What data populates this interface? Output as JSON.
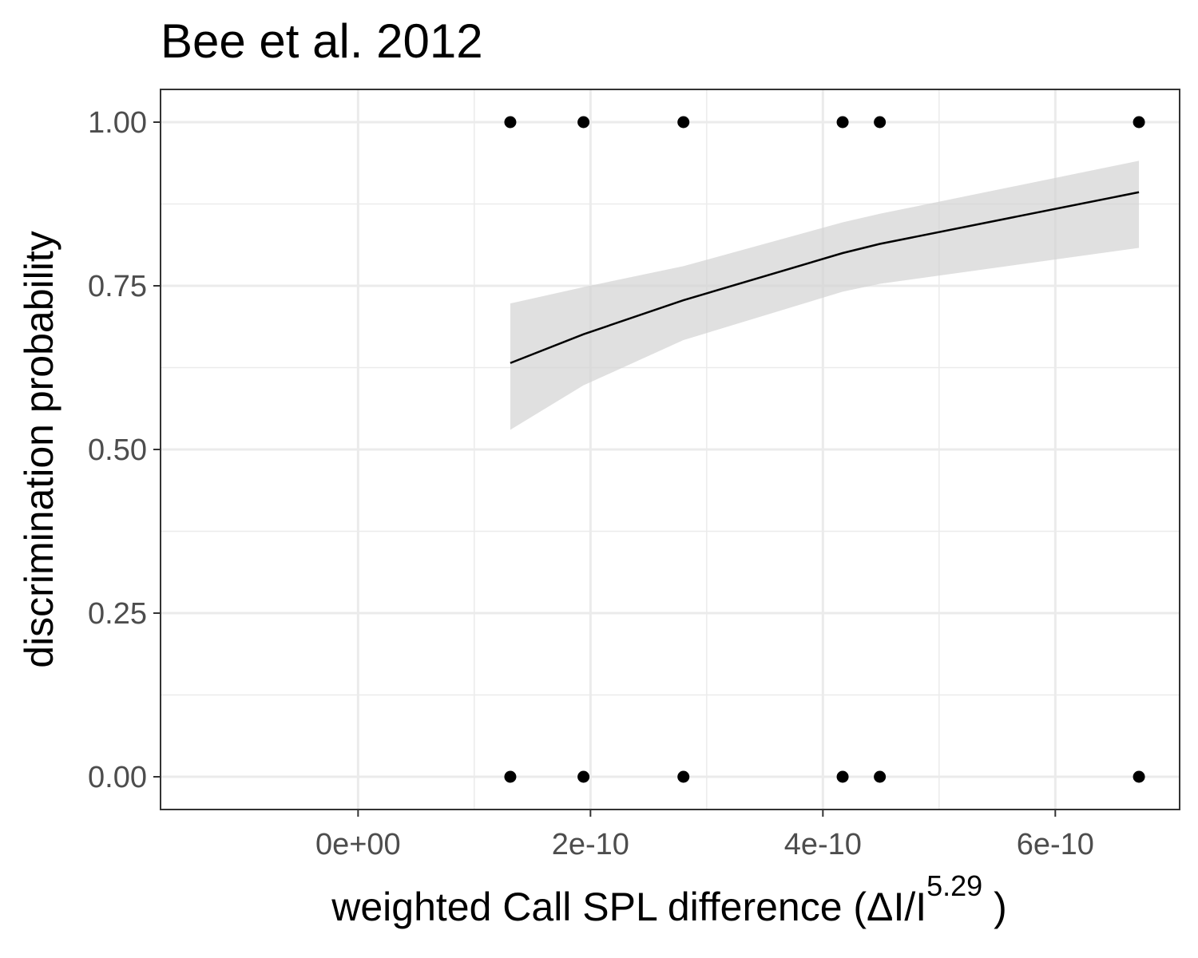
{
  "chart_data": {
    "type": "scatter",
    "title": "Bee et al. 2012",
    "xlabel": {
      "main": "weighted  Call SPL  difference (ΔI/I",
      "superscript": "5.29",
      "close": " )"
    },
    "ylabel": "discrimination probability",
    "xlim": [
      -1.7e-10,
      7.07e-10
    ],
    "ylim": [
      -0.05,
      1.05
    ],
    "x_ticks": [
      0,
      2e-10,
      4e-10,
      6e-10
    ],
    "x_tick_labels": [
      "0e+00",
      "2e-10",
      "4e-10",
      "6e-10"
    ],
    "y_ticks": [
      0,
      0.25,
      0.5,
      0.75,
      1.0
    ],
    "y_tick_labels": [
      "0.00",
      "0.25",
      "0.50",
      "0.75",
      "1.00"
    ],
    "grid": true,
    "series": [
      {
        "type": "scatter",
        "color": "#000000",
        "points": [
          {
            "x": 1.31e-10,
            "y": 1
          },
          {
            "x": 1.31e-10,
            "y": 0
          },
          {
            "x": 1.94e-10,
            "y": 1
          },
          {
            "x": 1.94e-10,
            "y": 0
          },
          {
            "x": 2.8e-10,
            "y": 1
          },
          {
            "x": 2.8e-10,
            "y": 0
          },
          {
            "x": 4.17e-10,
            "y": 1
          },
          {
            "x": 4.17e-10,
            "y": 0
          },
          {
            "x": 4.49e-10,
            "y": 1
          },
          {
            "x": 4.49e-10,
            "y": 0
          },
          {
            "x": 6.72e-10,
            "y": 1
          },
          {
            "x": 6.72e-10,
            "y": 0
          }
        ]
      },
      {
        "type": "line",
        "color": "#000000",
        "points": [
          {
            "x": 1.31e-10,
            "y": 0.632
          },
          {
            "x": 1.94e-10,
            "y": 0.676
          },
          {
            "x": 2.8e-10,
            "y": 0.728
          },
          {
            "x": 4.17e-10,
            "y": 0.8
          },
          {
            "x": 4.49e-10,
            "y": 0.814
          },
          {
            "x": 6.72e-10,
            "y": 0.893
          }
        ]
      },
      {
        "type": "ribbon",
        "color": "#d3d3d3",
        "opacity": 0.7,
        "points": [
          {
            "x": 1.31e-10,
            "lower": 0.53,
            "upper": 0.723
          },
          {
            "x": 1.94e-10,
            "lower": 0.598,
            "upper": 0.748
          },
          {
            "x": 2.8e-10,
            "lower": 0.667,
            "upper": 0.78
          },
          {
            "x": 4.17e-10,
            "lower": 0.741,
            "upper": 0.847
          },
          {
            "x": 4.49e-10,
            "lower": 0.753,
            "upper": 0.86
          },
          {
            "x": 6.72e-10,
            "lower": 0.808,
            "upper": 0.941
          }
        ]
      }
    ]
  }
}
